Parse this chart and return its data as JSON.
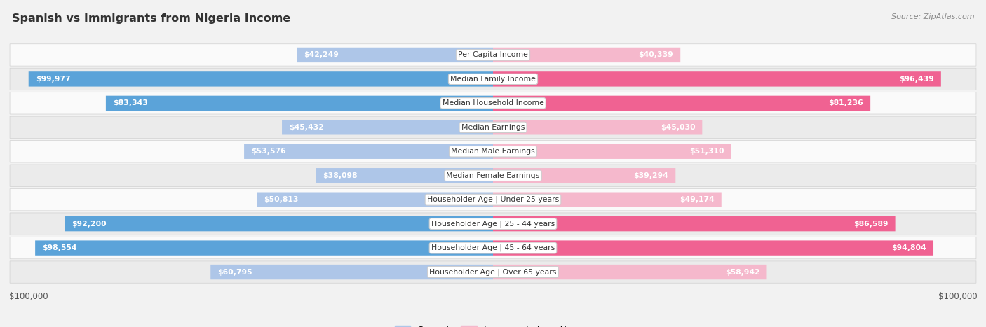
{
  "title": "Spanish vs Immigrants from Nigeria Income",
  "source": "Source: ZipAtlas.com",
  "categories": [
    "Per Capita Income",
    "Median Family Income",
    "Median Household Income",
    "Median Earnings",
    "Median Male Earnings",
    "Median Female Earnings",
    "Householder Age | Under 25 years",
    "Householder Age | 25 - 44 years",
    "Householder Age | 45 - 64 years",
    "Householder Age | Over 65 years"
  ],
  "spanish_values": [
    42249,
    99977,
    83343,
    45432,
    53576,
    38098,
    50813,
    92200,
    98554,
    60795
  ],
  "nigeria_values": [
    40339,
    96439,
    81236,
    45030,
    51310,
    39294,
    49174,
    86589,
    94804,
    58942
  ],
  "spanish_labels": [
    "$42,249",
    "$99,977",
    "$83,343",
    "$45,432",
    "$53,576",
    "$38,098",
    "$50,813",
    "$92,200",
    "$98,554",
    "$60,795"
  ],
  "nigeria_labels": [
    "$40,339",
    "$96,439",
    "$81,236",
    "$45,030",
    "$51,310",
    "$39,294",
    "$49,174",
    "$86,589",
    "$94,804",
    "$58,942"
  ],
  "max_value": 100000,
  "spanish_light": "#aec6e8",
  "spanish_dark": "#5ba3d9",
  "nigeria_light": "#f5b8cc",
  "nigeria_dark": "#f06292",
  "dark_threshold": 75000,
  "legend_spanish": "Spanish",
  "legend_nigeria": "Immigrants from Nigeria",
  "bg_color": "#f2f2f2",
  "row_light": "#fafafa",
  "row_dark": "#ebebeb"
}
